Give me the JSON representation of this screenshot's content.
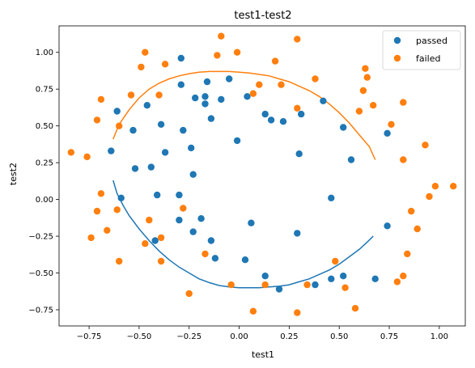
{
  "chart_data": {
    "type": "scatter",
    "title": "test1-test2",
    "xlabel": "test1",
    "ylabel": "test2",
    "xlim": [
      -0.9,
      1.13
    ],
    "ylim": [
      -0.86,
      1.18
    ],
    "xticks": [
      -0.75,
      -0.5,
      -0.25,
      0.0,
      0.25,
      0.5,
      0.75,
      1.0
    ],
    "xtick_labels": [
      "−0.75",
      "−0.50",
      "−0.25",
      "0.00",
      "0.25",
      "0.50",
      "0.75",
      "1.00"
    ],
    "yticks": [
      -0.75,
      -0.5,
      -0.25,
      0.0,
      0.25,
      0.5,
      0.75,
      1.0
    ],
    "ytick_labels": [
      "−0.75",
      "−0.50",
      "−0.25",
      "0.00",
      "0.25",
      "0.50",
      "0.75",
      "1.00"
    ],
    "grid": false,
    "legend_position": "top-right",
    "series": [
      {
        "name": "passed",
        "color": "#1f77b4",
        "points": [
          [
            -0.29,
            0.96
          ],
          [
            -0.05,
            0.82
          ],
          [
            -0.16,
            0.8
          ],
          [
            -0.29,
            0.78
          ],
          [
            -0.22,
            0.69
          ],
          [
            -0.17,
            0.7
          ],
          [
            -0.09,
            0.68
          ],
          [
            -0.17,
            0.65
          ],
          [
            0.04,
            0.7
          ],
          [
            -0.61,
            0.6
          ],
          [
            -0.46,
            0.64
          ],
          [
            -0.14,
            0.55
          ],
          [
            0.13,
            0.58
          ],
          [
            0.16,
            0.54
          ],
          [
            0.22,
            0.53
          ],
          [
            0.31,
            0.58
          ],
          [
            0.42,
            0.67
          ],
          [
            0.52,
            0.49
          ],
          [
            0.74,
            0.45
          ],
          [
            -0.53,
            0.47
          ],
          [
            -0.39,
            0.51
          ],
          [
            -0.28,
            0.47
          ],
          [
            -0.01,
            0.4
          ],
          [
            -0.64,
            0.33
          ],
          [
            -0.37,
            0.32
          ],
          [
            -0.24,
            0.35
          ],
          [
            -0.52,
            0.21
          ],
          [
            -0.44,
            0.22
          ],
          [
            0.3,
            0.31
          ],
          [
            0.56,
            0.27
          ],
          [
            -0.23,
            0.17
          ],
          [
            -0.59,
            0.01
          ],
          [
            -0.41,
            0.03
          ],
          [
            -0.3,
            0.03
          ],
          [
            0.46,
            0.01
          ],
          [
            -0.3,
            -0.14
          ],
          [
            -0.19,
            -0.13
          ],
          [
            -0.42,
            -0.28
          ],
          [
            -0.23,
            -0.22
          ],
          [
            -0.14,
            -0.28
          ],
          [
            0.06,
            -0.16
          ],
          [
            0.74,
            -0.18
          ],
          [
            0.29,
            -0.23
          ],
          [
            -0.12,
            -0.4
          ],
          [
            0.03,
            -0.41
          ],
          [
            0.13,
            -0.52
          ],
          [
            0.2,
            -0.61
          ],
          [
            0.38,
            -0.58
          ],
          [
            0.46,
            -0.54
          ],
          [
            0.52,
            -0.52
          ],
          [
            0.68,
            -0.54
          ]
        ]
      },
      {
        "name": "failed",
        "color": "#ff7f0e",
        "points": [
          [
            -0.09,
            1.11
          ],
          [
            0.29,
            1.09
          ],
          [
            -0.47,
            1.0
          ],
          [
            -0.11,
            0.98
          ],
          [
            -0.01,
            1.0
          ],
          [
            0.18,
            0.94
          ],
          [
            0.63,
            0.89
          ],
          [
            -0.37,
            0.92
          ],
          [
            -0.49,
            0.9
          ],
          [
            -0.54,
            0.71
          ],
          [
            -0.4,
            0.71
          ],
          [
            0.07,
            0.72
          ],
          [
            0.38,
            0.82
          ],
          [
            0.1,
            0.78
          ],
          [
            0.21,
            0.78
          ],
          [
            0.62,
            0.74
          ],
          [
            0.64,
            0.83
          ],
          [
            -0.69,
            0.68
          ],
          [
            0.67,
            0.64
          ],
          [
            0.82,
            0.66
          ],
          [
            0.29,
            0.62
          ],
          [
            -0.71,
            0.54
          ],
          [
            -0.6,
            0.5
          ],
          [
            0.6,
            0.6
          ],
          [
            0.76,
            0.51
          ],
          [
            0.93,
            0.37
          ],
          [
            0.82,
            0.27
          ],
          [
            -0.84,
            0.32
          ],
          [
            -0.76,
            0.29
          ],
          [
            1.07,
            0.09
          ],
          [
            0.98,
            0.09
          ],
          [
            -0.69,
            0.04
          ],
          [
            0.95,
            0.02
          ],
          [
            -0.71,
            -0.08
          ],
          [
            -0.61,
            -0.07
          ],
          [
            0.89,
            -0.2
          ],
          [
            0.86,
            -0.08
          ],
          [
            -0.45,
            -0.14
          ],
          [
            -0.28,
            -0.06
          ],
          [
            -0.39,
            -0.26
          ],
          [
            -0.66,
            -0.21
          ],
          [
            -0.74,
            -0.26
          ],
          [
            -0.47,
            -0.3
          ],
          [
            0.84,
            -0.37
          ],
          [
            -0.17,
            -0.37
          ],
          [
            -0.39,
            -0.42
          ],
          [
            -0.6,
            -0.42
          ],
          [
            0.48,
            -0.42
          ],
          [
            0.13,
            -0.58
          ],
          [
            0.34,
            -0.58
          ],
          [
            0.53,
            -0.6
          ],
          [
            0.79,
            -0.56
          ],
          [
            0.82,
            -0.52
          ],
          [
            -0.04,
            -0.58
          ],
          [
            -0.25,
            -0.64
          ],
          [
            0.07,
            -0.76
          ],
          [
            0.29,
            -0.77
          ],
          [
            0.58,
            -0.74
          ]
        ]
      }
    ],
    "curves": [
      {
        "color": "#ff7f0e",
        "points": [
          [
            -0.63,
            0.41
          ],
          [
            -0.6,
            0.51
          ],
          [
            -0.55,
            0.61
          ],
          [
            -0.5,
            0.69
          ],
          [
            -0.45,
            0.75
          ],
          [
            -0.4,
            0.79
          ],
          [
            -0.35,
            0.82
          ],
          [
            -0.3,
            0.84
          ],
          [
            -0.25,
            0.855
          ],
          [
            -0.2,
            0.865
          ],
          [
            -0.15,
            0.87
          ],
          [
            -0.1,
            0.87
          ],
          [
            -0.05,
            0.87
          ],
          [
            0.0,
            0.865
          ],
          [
            0.05,
            0.86
          ],
          [
            0.1,
            0.85
          ],
          [
            0.15,
            0.84
          ],
          [
            0.2,
            0.82
          ],
          [
            0.25,
            0.8
          ],
          [
            0.3,
            0.77
          ],
          [
            0.35,
            0.74
          ],
          [
            0.4,
            0.7
          ],
          [
            0.45,
            0.65
          ],
          [
            0.5,
            0.59
          ],
          [
            0.55,
            0.52
          ],
          [
            0.6,
            0.44
          ],
          [
            0.65,
            0.36
          ],
          [
            0.68,
            0.27
          ]
        ]
      },
      {
        "color": "#1f77b4",
        "points": [
          [
            -0.63,
            0.13
          ],
          [
            -0.61,
            0.04
          ],
          [
            -0.58,
            -0.04
          ],
          [
            -0.55,
            -0.11
          ],
          [
            -0.5,
            -0.2
          ],
          [
            -0.45,
            -0.28
          ],
          [
            -0.4,
            -0.35
          ],
          [
            -0.35,
            -0.41
          ],
          [
            -0.3,
            -0.46
          ],
          [
            -0.25,
            -0.5
          ],
          [
            -0.2,
            -0.54
          ],
          [
            -0.15,
            -0.565
          ],
          [
            -0.1,
            -0.585
          ],
          [
            -0.05,
            -0.595
          ],
          [
            0.0,
            -0.6
          ],
          [
            0.05,
            -0.6
          ],
          [
            0.1,
            -0.6
          ],
          [
            0.15,
            -0.595
          ],
          [
            0.2,
            -0.59
          ],
          [
            0.25,
            -0.58
          ],
          [
            0.3,
            -0.56
          ],
          [
            0.35,
            -0.54
          ],
          [
            0.4,
            -0.51
          ],
          [
            0.45,
            -0.48
          ],
          [
            0.5,
            -0.44
          ],
          [
            0.55,
            -0.39
          ],
          [
            0.6,
            -0.34
          ],
          [
            0.64,
            -0.29
          ],
          [
            0.67,
            -0.25
          ]
        ]
      }
    ]
  }
}
